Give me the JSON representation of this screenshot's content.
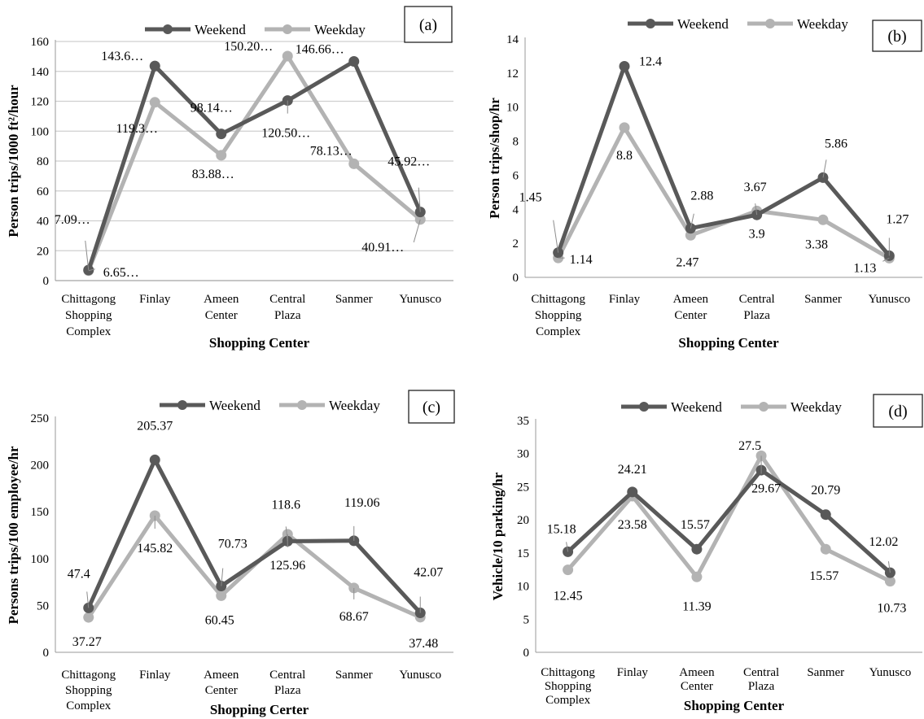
{
  "figure": {
    "legend_entries": [
      "Weekend",
      "Weekday"
    ],
    "colors": {
      "weekend": "#595959",
      "weekday": "#b3b3b3",
      "grid": "#cfcfcf"
    }
  },
  "chart_data": [
    {
      "type": "line",
      "panel_label": "(a)",
      "categories": [
        [
          "Chittagong",
          "Shopping",
          "Complex"
        ],
        [
          "Finlay"
        ],
        [
          "Ameen",
          "Center"
        ],
        [
          "Central",
          "Plaza"
        ],
        [
          "Sanmer"
        ],
        [
          "Yunusco"
        ]
      ],
      "xlabel": "Shopping Center",
      "ylabel": "Person trips/1000 ft²/hour",
      "ylim": [
        0,
        160
      ],
      "yticks": [
        0,
        20,
        40,
        60,
        80,
        100,
        120,
        140,
        160
      ],
      "grid": true,
      "legend": "top",
      "series": [
        {
          "name": "Weekend",
          "values": [
            7.09,
            143.6,
            98.14,
            120.5,
            146.66,
            45.92
          ],
          "labels": [
            "7.09…",
            "143.6…",
            "98.14…",
            "120.50…",
            "146.66…",
            "45.92…"
          ]
        },
        {
          "name": "Weekday",
          "values": [
            6.65,
            119.3,
            83.88,
            150.2,
            78.13,
            40.91
          ],
          "labels": [
            "6.65…",
            "119.3…",
            "83.88…",
            "150.20…",
            "78.13…",
            "40.91…"
          ]
        }
      ]
    },
    {
      "type": "line",
      "panel_label": "(b)",
      "categories": [
        [
          "Chittagong",
          "Shopping",
          "Complex"
        ],
        [
          "Finlay"
        ],
        [
          "Ameen",
          "Center"
        ],
        [
          "Central",
          "Plaza"
        ],
        [
          "Sanmer"
        ],
        [
          "Yunusco"
        ]
      ],
      "xlabel": "Shopping Center",
      "ylabel": "Person trips/shop/hr",
      "ylim": [
        0,
        14
      ],
      "yticks": [
        0,
        2,
        4,
        6,
        8,
        10,
        12,
        14
      ],
      "grid": false,
      "legend": "top",
      "series": [
        {
          "name": "Weekend",
          "values": [
            1.45,
            12.4,
            2.88,
            3.67,
            5.86,
            1.27
          ],
          "labels": [
            "1.45",
            "12.4",
            "2.88",
            "3.67",
            "5.86",
            "1.27"
          ]
        },
        {
          "name": "Weekday",
          "values": [
            1.14,
            8.8,
            2.47,
            3.9,
            3.38,
            1.13
          ],
          "labels": [
            "1.14",
            "8.8",
            "2.47",
            "3.9",
            "3.38",
            "1.13"
          ]
        }
      ]
    },
    {
      "type": "line",
      "panel_label": "(c)",
      "categories": [
        [
          "Chittagong",
          "Shopping",
          "Complex"
        ],
        [
          "Finlay"
        ],
        [
          "Ameen",
          "Center"
        ],
        [
          "Central",
          "Plaza"
        ],
        [
          "Sanmer"
        ],
        [
          "Yunusco"
        ]
      ],
      "xlabel": "Shopping Certer",
      "ylabel": "Persons trips/100 employee/hr",
      "ylim": [
        0,
        250
      ],
      "yticks": [
        0,
        50,
        100,
        150,
        200,
        250
      ],
      "grid": false,
      "legend": "top",
      "series": [
        {
          "name": "Weekend",
          "values": [
            47.4,
            205.37,
            70.73,
            118.6,
            119.06,
            42.07
          ],
          "labels": [
            "47.4",
            "205.37",
            "70.73",
            "118.6",
            "119.06",
            "42.07"
          ]
        },
        {
          "name": "Weekday",
          "values": [
            37.27,
            145.82,
            60.45,
            125.96,
            68.67,
            37.48
          ],
          "labels": [
            "37.27",
            "145.82",
            "60.45",
            "125.96",
            "68.67",
            "37.48"
          ]
        }
      ]
    },
    {
      "type": "line",
      "panel_label": "(d)",
      "categories": [
        [
          "Chittagong",
          "Shopping",
          "Complex"
        ],
        [
          "Finlay"
        ],
        [
          "Ameen",
          "Center"
        ],
        [
          "Central",
          "Plaza"
        ],
        [
          "Sanmer"
        ],
        [
          "Yunusco"
        ]
      ],
      "xlabel": "Shopping Center",
      "ylabel": "Vehicle/10 parking/hr",
      "ylim": [
        0,
        35
      ],
      "yticks": [
        0,
        5,
        10,
        15,
        20,
        25,
        30,
        35
      ],
      "grid": false,
      "legend": "top",
      "series": [
        {
          "name": "Weekend",
          "values": [
            15.18,
            24.21,
            15.57,
            27.5,
            20.79,
            12.02
          ],
          "labels": [
            "15.18",
            "24.21",
            "15.57",
            "27.5",
            "20.79",
            "12.02"
          ]
        },
        {
          "name": "Weekday",
          "values": [
            12.45,
            23.58,
            11.39,
            29.67,
            15.57,
            10.73
          ],
          "labels": [
            "12.45",
            "23.58",
            "11.39",
            "29.67",
            "15.57",
            "10.73"
          ]
        }
      ]
    }
  ]
}
